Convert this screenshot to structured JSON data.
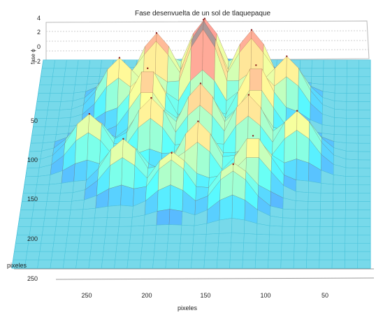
{
  "chart_data": {
    "type": "surface",
    "title": "Fase desenvuelta de un sol de tlaquepaque",
    "zlabel": "fase ϕ",
    "ylabel": "pixeles",
    "xlabel": "pixeles",
    "z_ticks": [
      "4",
      "2",
      "0",
      "-2"
    ],
    "y_ticks": [
      "50",
      "100",
      "150",
      "200",
      "250"
    ],
    "x_ticks": [
      "250",
      "200",
      "150",
      "100",
      "50"
    ],
    "zlim": [
      -2,
      4
    ],
    "xlim": [
      0,
      280
    ],
    "ylim": [
      0,
      250
    ],
    "colormap": "jet",
    "grid": true,
    "peaks": [
      {
        "x": 140,
        "y": 55,
        "z": 3.6
      },
      {
        "x": 140,
        "y": 35,
        "z": 2.6
      },
      {
        "x": 100,
        "y": 45,
        "z": 2.4
      },
      {
        "x": 180,
        "y": 45,
        "z": 2.2
      },
      {
        "x": 95,
        "y": 80,
        "z": 2.0
      },
      {
        "x": 185,
        "y": 80,
        "z": 1.8
      },
      {
        "x": 140,
        "y": 100,
        "z": 1.9
      },
      {
        "x": 100,
        "y": 110,
        "z": 1.7
      },
      {
        "x": 180,
        "y": 110,
        "z": 1.5
      },
      {
        "x": 140,
        "y": 140,
        "z": 1.6
      },
      {
        "x": 95,
        "y": 150,
        "z": 1.2
      },
      {
        "x": 200,
        "y": 150,
        "z": 1.0
      },
      {
        "x": 60,
        "y": 120,
        "z": 1.2
      },
      {
        "x": 230,
        "y": 120,
        "z": 1.0
      },
      {
        "x": 70,
        "y": 60,
        "z": 1.5
      },
      {
        "x": 210,
        "y": 60,
        "z": 1.4
      },
      {
        "x": 160,
        "y": 165,
        "z": 0.9
      },
      {
        "x": 110,
        "y": 175,
        "z": 0.7
      }
    ]
  }
}
